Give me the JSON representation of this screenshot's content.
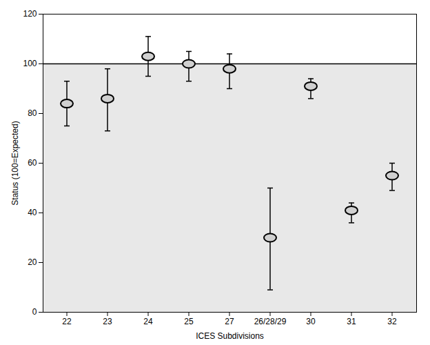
{
  "chart_data": {
    "type": "errorbar",
    "categories": [
      "22",
      "23",
      "24",
      "25",
      "27",
      "26/28/29",
      "30",
      "31",
      "32"
    ],
    "values": [
      84,
      86,
      103,
      100,
      98,
      30,
      91,
      41,
      55
    ],
    "error_upper": [
      9,
      12,
      8,
      5,
      6,
      20,
      3,
      3,
      5
    ],
    "error_lower": [
      9,
      13,
      8,
      7,
      8,
      21,
      5,
      5,
      6
    ],
    "reference_line": 100,
    "color": "#d0d0d0",
    "xlabel": "ICES Subdivisions",
    "ylabel": "Status (100=Expected)",
    "ylim": [
      0,
      120
    ],
    "yticks": [
      0,
      20,
      40,
      60,
      80,
      100,
      120
    ],
    "grid": false
  }
}
